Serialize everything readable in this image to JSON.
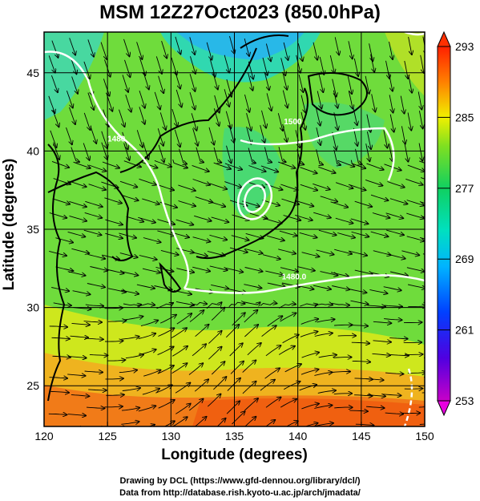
{
  "title": "MSM 12Z27Oct2023 (850.0hPa)",
  "chart_data": {
    "type": "heatmap",
    "title": "MSM 12Z27Oct2023 (850.0hPa)",
    "xlabel": "Longitude (degrees)",
    "ylabel": "Latitude  (degrees)",
    "xlim": [
      120,
      150
    ],
    "ylim": [
      22.4,
      47.6
    ],
    "x_ticks": [
      "120",
      "125",
      "130",
      "135",
      "140",
      "145",
      "150"
    ],
    "y_ticks": [
      "25",
      "30",
      "35",
      "40",
      "45"
    ],
    "x_tick_values": [
      120,
      125,
      130,
      135,
      140,
      145,
      150
    ],
    "y_tick_values": [
      25,
      30,
      35,
      40,
      45
    ],
    "grid": true,
    "shaded_field": "temperature (K)",
    "colorbar": {
      "min": 253,
      "max": 293,
      "tick_labels": [
        "293",
        "285",
        "277",
        "269",
        "261",
        "253"
      ],
      "tick_values": [
        293,
        285,
        277,
        269,
        261,
        253
      ]
    },
    "contour_labels": [
      {
        "text": "1500",
        "lon": 139.6,
        "lat": 41.7
      },
      {
        "text": "1480.0",
        "lon": 139.7,
        "lat": 31.8
      },
      {
        "text": "1480",
        "lon": 125.7,
        "lat": 40.6
      }
    ],
    "overlay": "streamlines"
  },
  "credits": {
    "line1": "Drawing by DCL (https://www.gfd-dennou.org/library/dcl/)",
    "line2": "Data from http://database.rish.kyoto-u.ac.jp/arch/jmadata/"
  },
  "colors": {
    "frame": "#000000",
    "coastline": "#000000",
    "contour": "#ffffff"
  }
}
